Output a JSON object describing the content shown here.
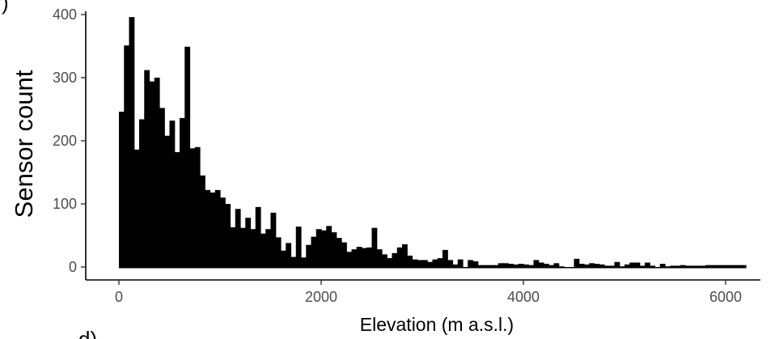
{
  "panel_labels": {
    "top": ")",
    "bottom": "d)"
  },
  "chart_data": {
    "type": "bar",
    "xlabel": "Elevation (m a.s.l.)",
    "ylabel": "Sensor count",
    "xlim": [
      -300,
      6300
    ],
    "ylim": [
      0,
      400
    ],
    "x_ticks": [
      0,
      2000,
      4000,
      6000
    ],
    "y_ticks": [
      0,
      100,
      200,
      300,
      400
    ],
    "grid": false,
    "bin_width": 50,
    "bar_color": "#000000",
    "bin_starts": [
      0,
      50,
      100,
      150,
      200,
      250,
      300,
      350,
      400,
      450,
      500,
      550,
      600,
      650,
      700,
      750,
      800,
      850,
      900,
      950,
      1000,
      1050,
      1100,
      1150,
      1200,
      1250,
      1300,
      1350,
      1400,
      1450,
      1500,
      1550,
      1600,
      1650,
      1700,
      1750,
      1800,
      1850,
      1900,
      1950,
      2000,
      2050,
      2100,
      2150,
      2200,
      2250,
      2300,
      2350,
      2400,
      2450,
      2500,
      2550,
      2600,
      2650,
      2700,
      2750,
      2800,
      2850,
      2900,
      2950,
      3000,
      3050,
      3100,
      3150,
      3200,
      3250,
      3300,
      3350,
      3400,
      3450,
      3500,
      3550,
      3600,
      3650,
      3700,
      3750,
      3800,
      3850,
      3900,
      3950,
      4000,
      4050,
      4100,
      4150,
      4200,
      4250,
      4300,
      4350,
      4400,
      4450,
      4500,
      4550,
      4600,
      4650,
      4700,
      4750,
      4800,
      4850,
      4900,
      4950,
      5000,
      5050,
      5100,
      5150,
      5200,
      5250,
      5300,
      5350,
      5400,
      5450,
      5500,
      5550,
      5600,
      5650,
      5700,
      5750,
      5800,
      5850,
      5900,
      5950,
      6000,
      6050,
      6100,
      6150
    ],
    "values": [
      246,
      351,
      396,
      186,
      234,
      312,
      294,
      300,
      252,
      208,
      232,
      182,
      236,
      349,
      188,
      190,
      145,
      122,
      118,
      122,
      110,
      100,
      63,
      92,
      62,
      78,
      60,
      95,
      53,
      60,
      86,
      47,
      26,
      38,
      16,
      64,
      15,
      35,
      48,
      60,
      58,
      65,
      55,
      46,
      39,
      24,
      28,
      32,
      30,
      31,
      62,
      28,
      20,
      14,
      22,
      31,
      36,
      18,
      12,
      11,
      11,
      8,
      12,
      14,
      27,
      11,
      4,
      12,
      0,
      11,
      9,
      3,
      3,
      3,
      3,
      6,
      6,
      5,
      4,
      5,
      4,
      3,
      11,
      7,
      5,
      3,
      6,
      1,
      0,
      0,
      13,
      5,
      4,
      6,
      5,
      4,
      2,
      2,
      8,
      1,
      4,
      7,
      7,
      2,
      7,
      2,
      0,
      5,
      1,
      2,
      2,
      3,
      2,
      2,
      2,
      2,
      3,
      3,
      3,
      3,
      3,
      3,
      3,
      3
    ]
  }
}
